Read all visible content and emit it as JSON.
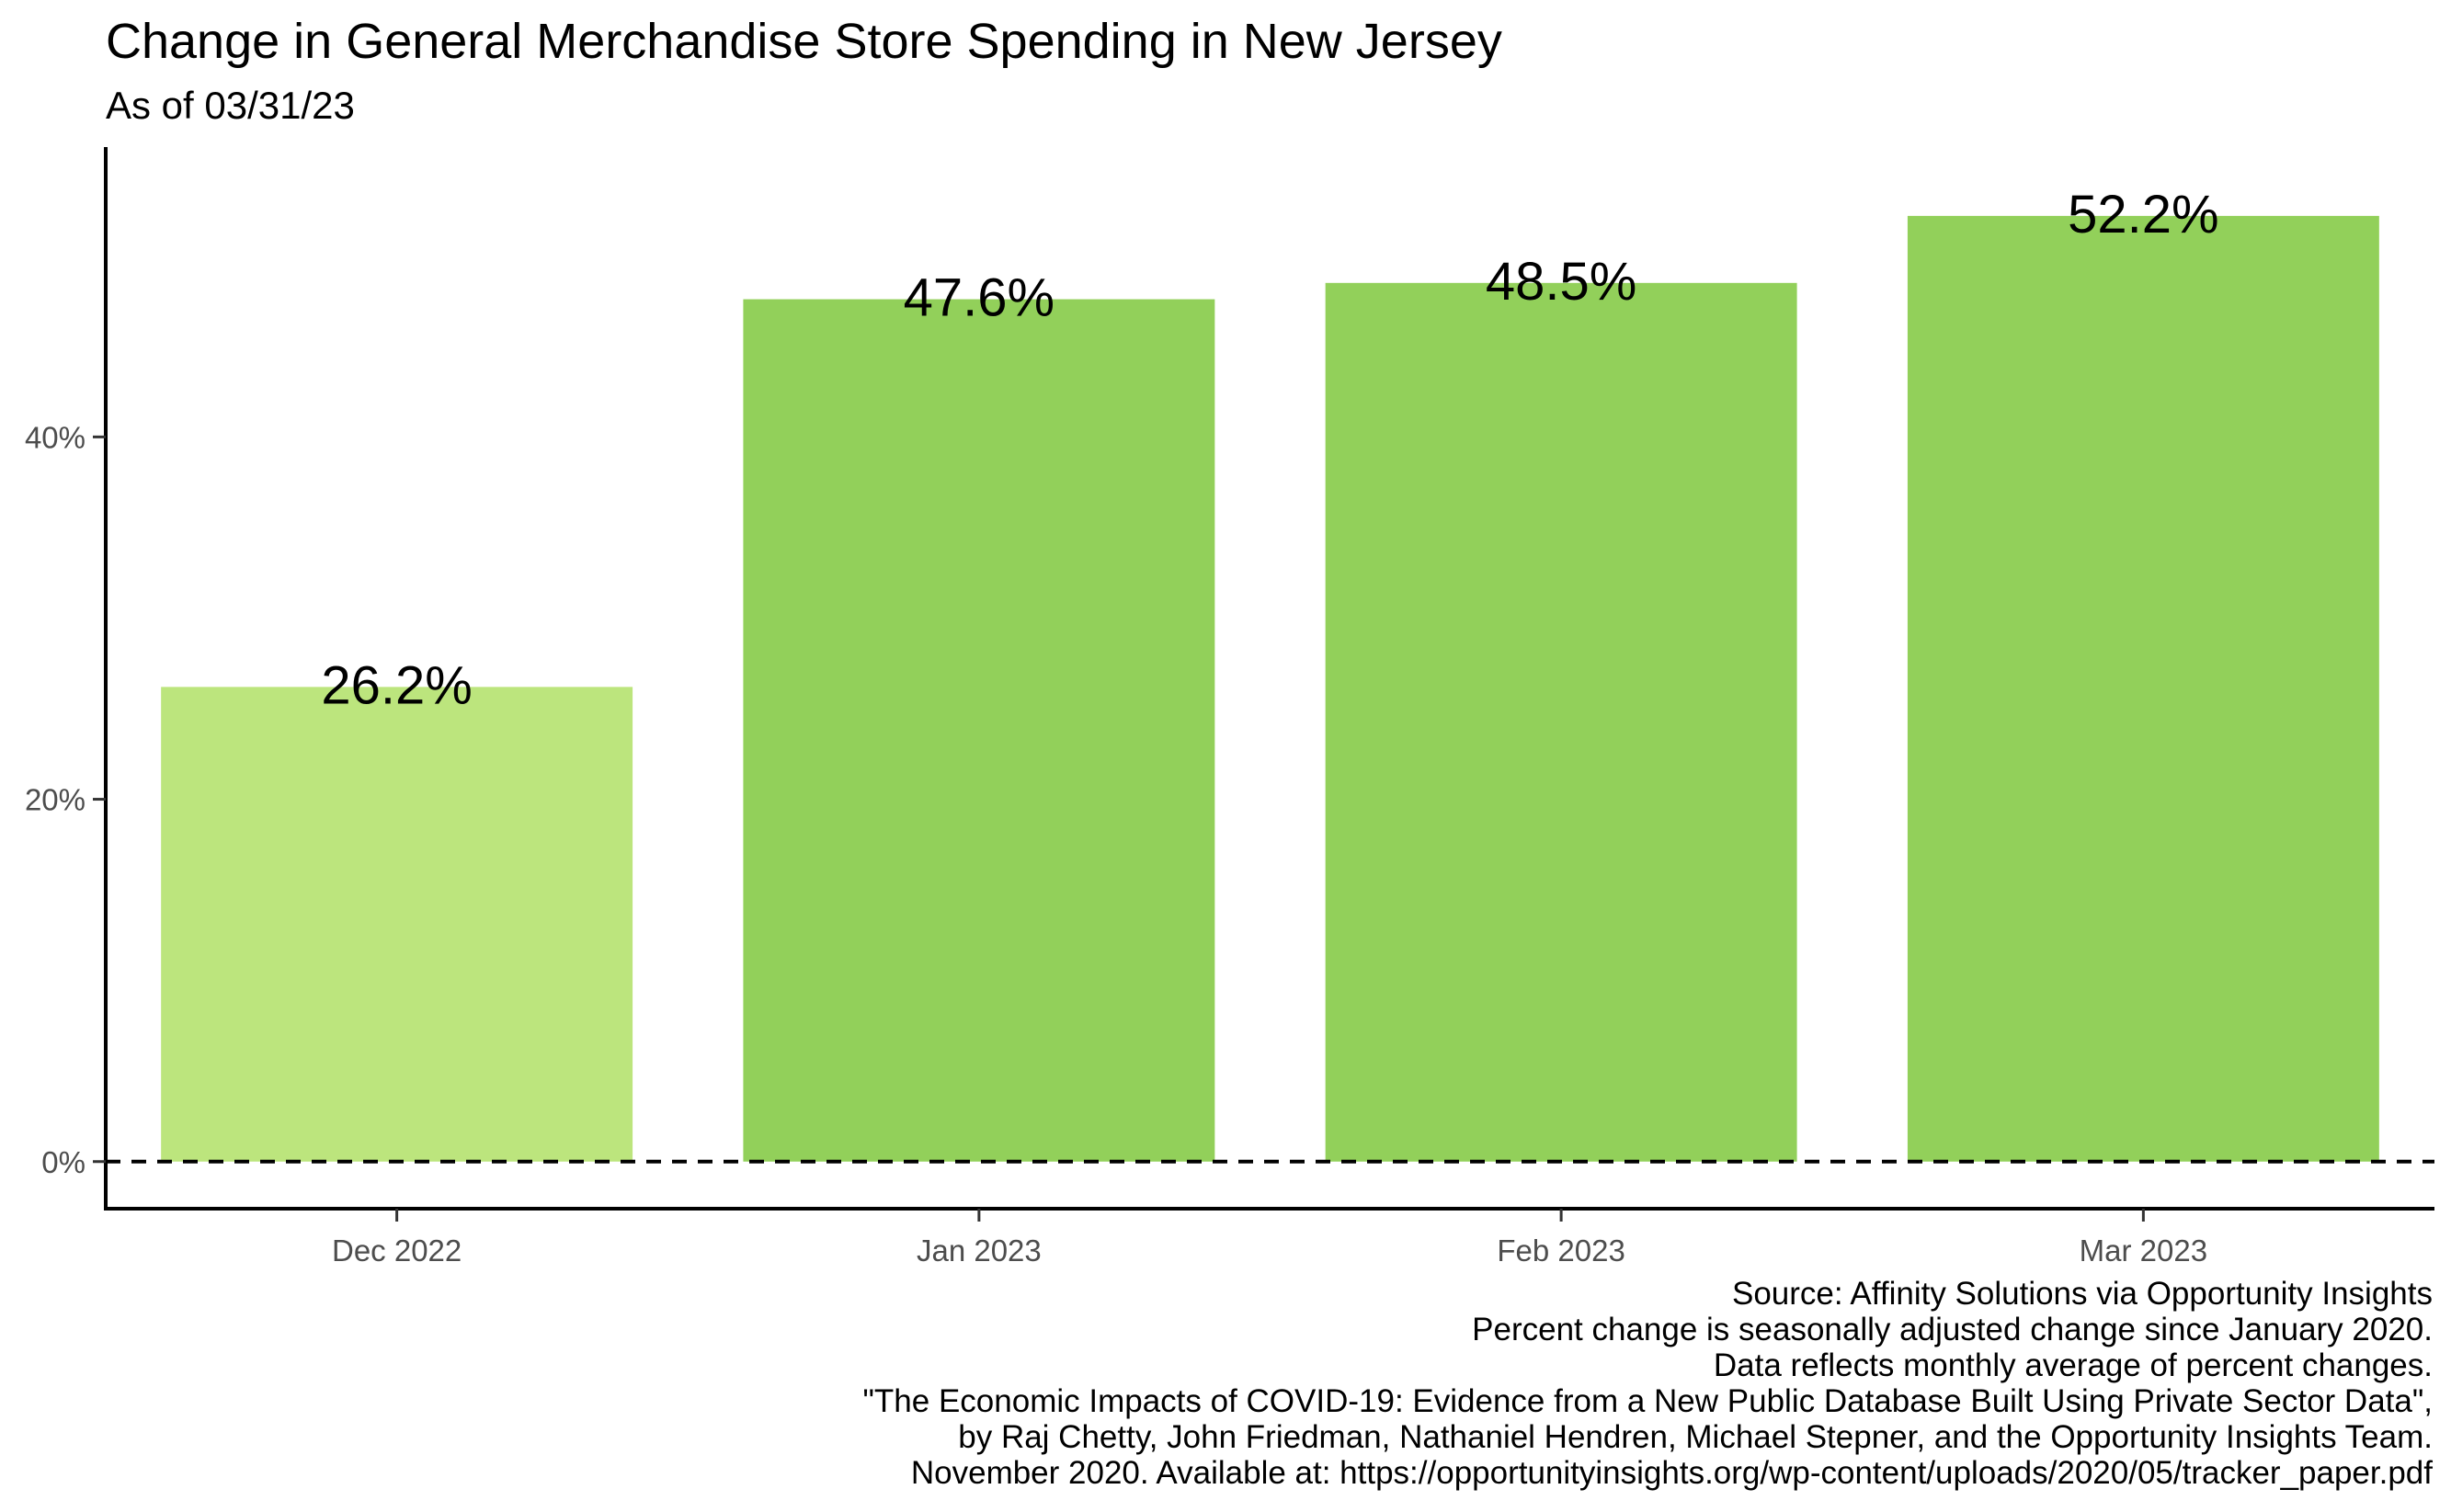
{
  "title": "Change in General Merchandise Store Spending in New Jersey",
  "subtitle": "As of 03/31/23",
  "colors": {
    "highlight": "#bce57d",
    "bar": "#92d05a",
    "reference_line": "#000000"
  },
  "chart_data": {
    "type": "bar",
    "title": "Change in General Merchandise Store Spending in New Jersey",
    "subtitle": "As of 03/31/23",
    "categories": [
      "Dec 2022",
      "Jan 2023",
      "Feb 2023",
      "Mar 2023"
    ],
    "values": [
      26.2,
      47.6,
      48.5,
      52.2
    ],
    "data_labels": [
      "26.2%",
      "47.6%",
      "48.5%",
      "52.2%"
    ],
    "y_ticks": [
      0,
      20,
      40
    ],
    "y_tick_labels": [
      "0%",
      "20%",
      "40%"
    ],
    "ylim": [
      -2.6,
      56
    ],
    "xlabel": "",
    "ylabel": "",
    "reference_line": {
      "y": 0,
      "style": "dashed"
    },
    "grid": false,
    "legend": "none"
  },
  "caption": [
    "Source: Affinity Solutions via Opportunity Insights",
    "Percent change is seasonally adjusted change since January 2020.",
    "Data reflects monthly average of percent changes.",
    "\"The Economic Impacts of COVID-19: Evidence from a New Public Database Built Using Private Sector Data\",",
    "by Raj Chetty, John Friedman, Nathaniel Hendren, Michael Stepner, and the Opportunity Insights Team.",
    "November 2020. Available at: https://opportunityinsights.org/wp-content/uploads/2020/05/tracker_paper.pdf"
  ]
}
